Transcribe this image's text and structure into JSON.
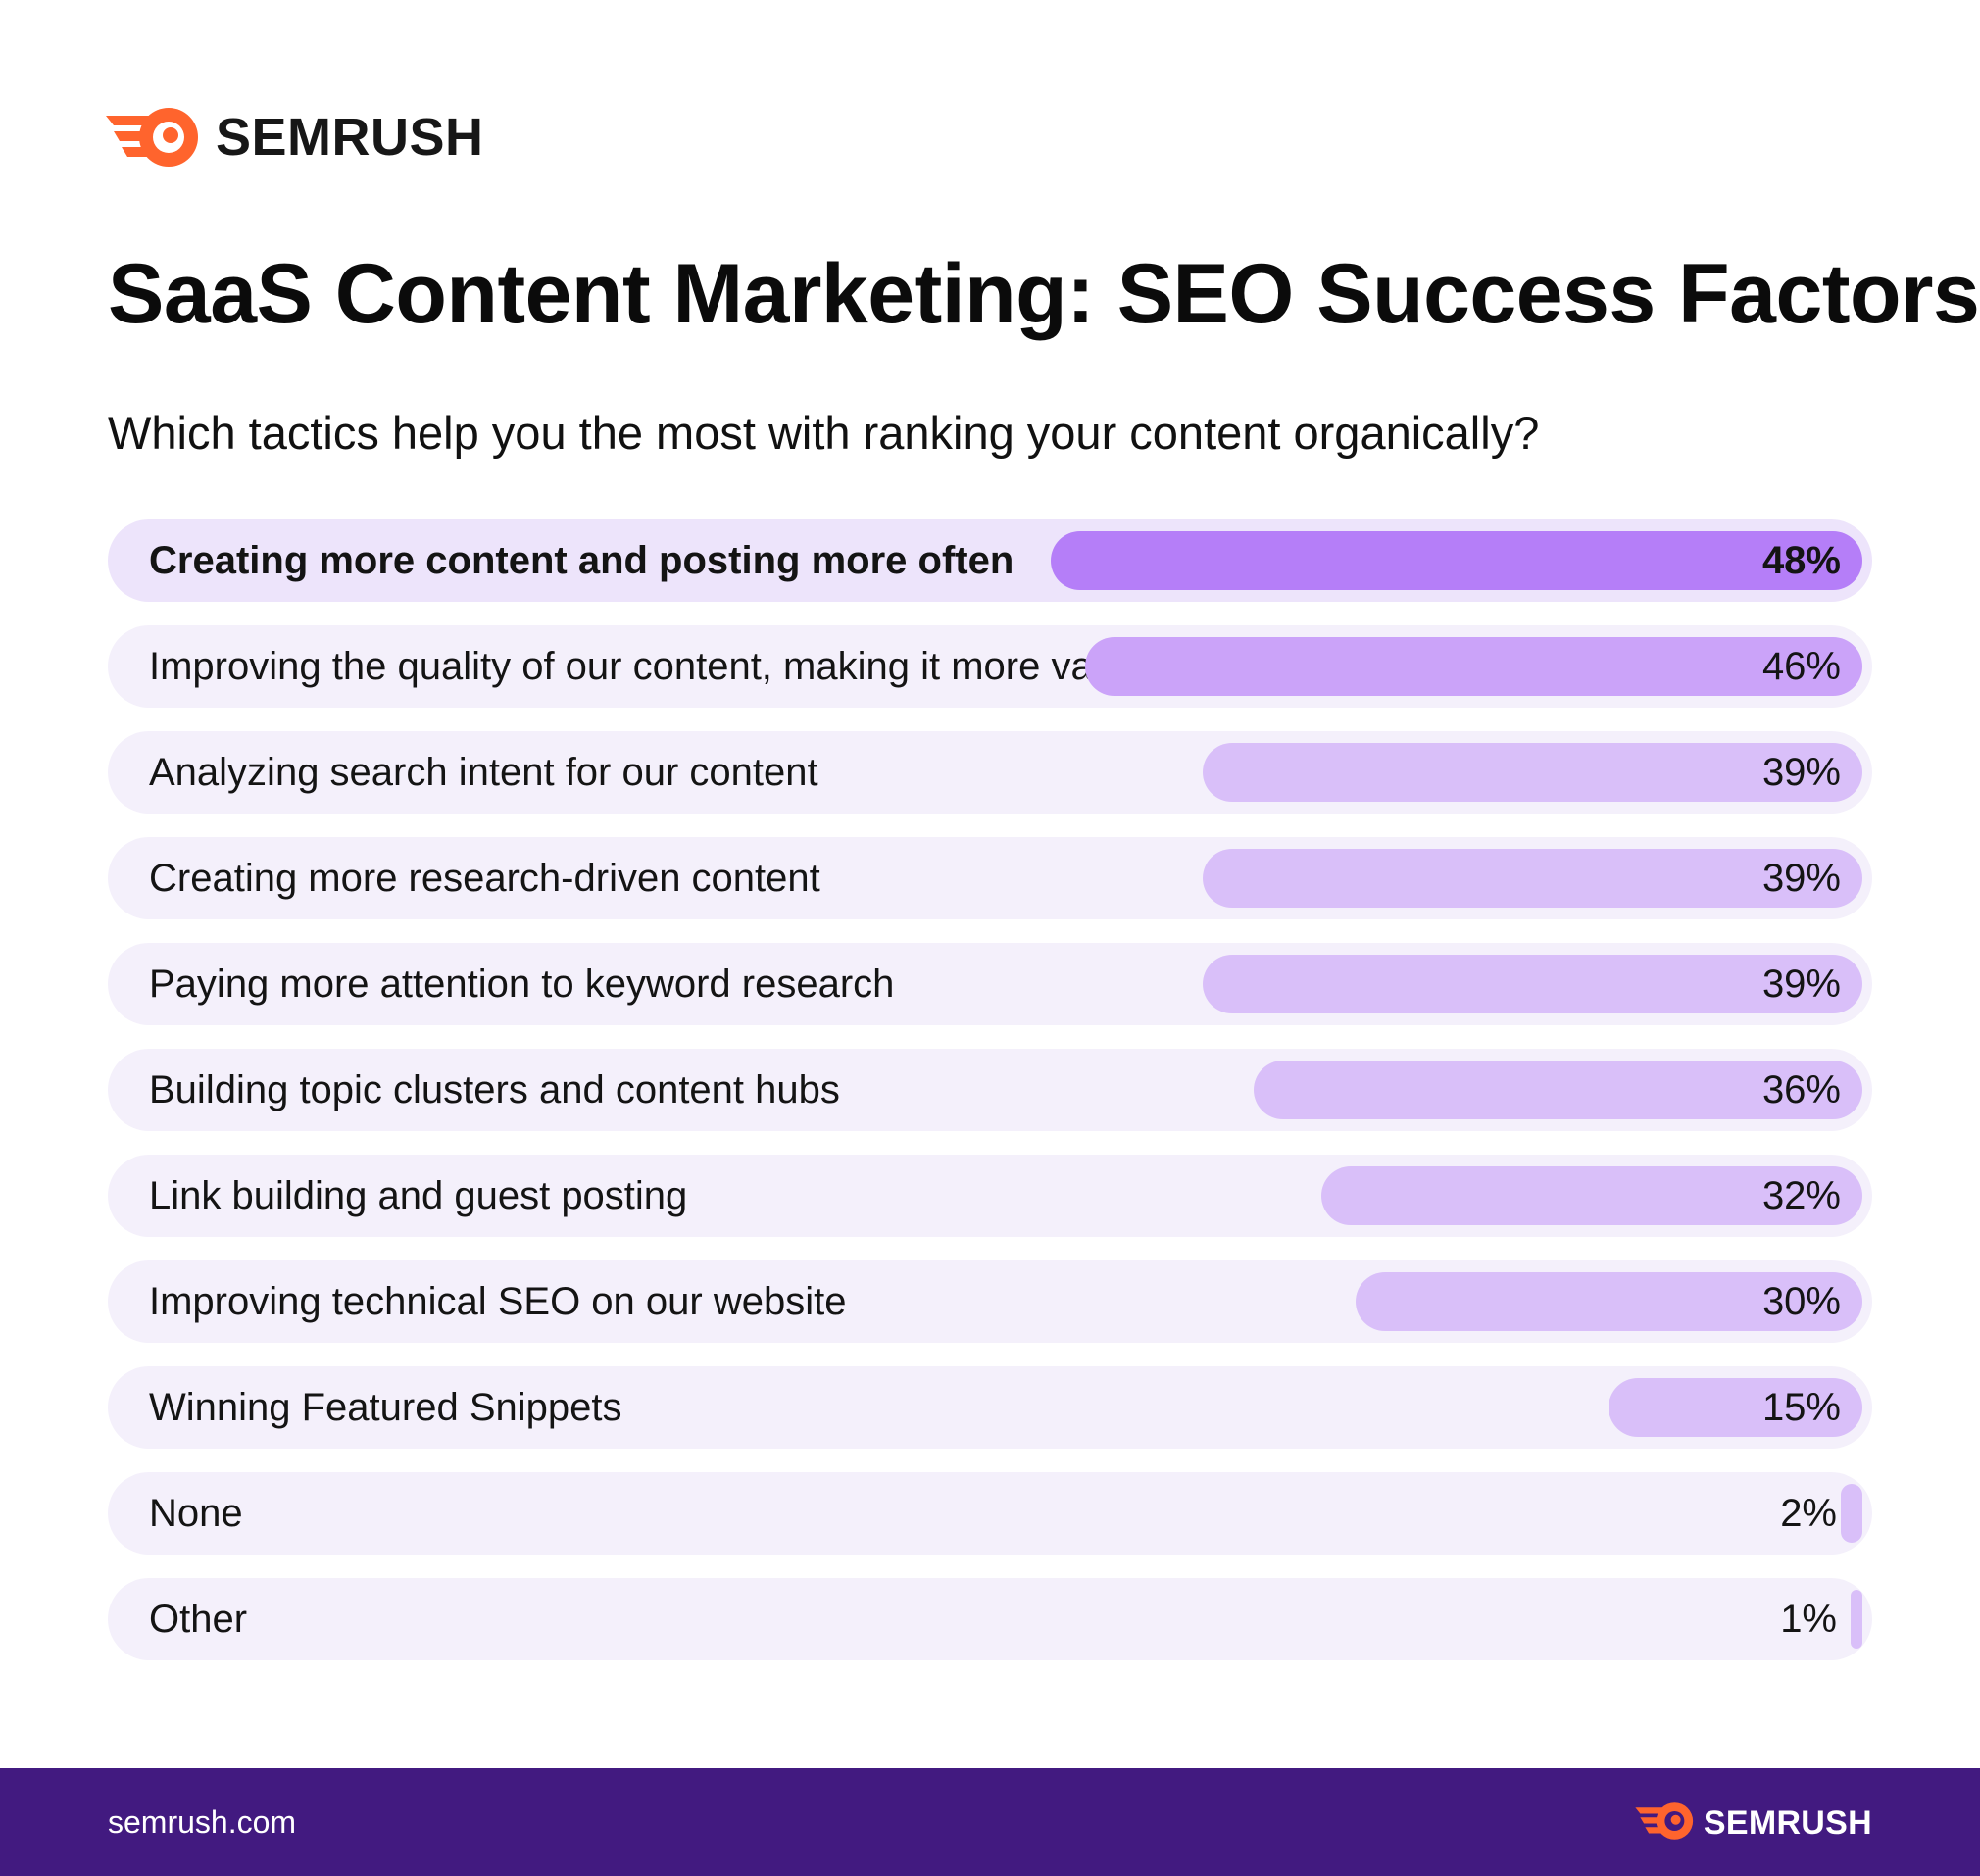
{
  "brand": {
    "name": "SEMRUSH",
    "color": "#ff642d",
    "logo_icon": "semrush-comet-icon"
  },
  "title": "SaaS Content Marketing: SEO Success Factors",
  "subtitle": "Which tactics help you the most with ranking your content organically?",
  "footer": {
    "url": "semrush.com",
    "brand": "SEMRUSH",
    "background": "#421a80"
  },
  "chart_data": {
    "type": "bar",
    "orientation": "horizontal",
    "title": "SaaS Content Marketing: SEO Success Factors",
    "subtitle": "Which tactics help you the most with ranking your content organically?",
    "value_format": "percent",
    "xlim": [
      0,
      50
    ],
    "categories": [
      "Creating more content and posting more often",
      "Improving the quality of our content, making it more valuable",
      "Analyzing search intent for our content",
      "Creating more research-driven content",
      "Paying more attention to keyword research",
      "Building topic clusters and content hubs",
      "Link building and guest posting",
      "Improving technical SEO on our website",
      "Winning Featured Snippets",
      "None",
      "Other"
    ],
    "values": [
      48,
      46,
      39,
      39,
      39,
      36,
      32,
      30,
      15,
      2,
      1
    ],
    "labels": [
      "48%",
      "46%",
      "39%",
      "39%",
      "39%",
      "36%",
      "32%",
      "30%",
      "15%",
      "2%",
      "1%"
    ],
    "colors": {
      "row_bg": "#f4f0fb",
      "row_bg_top": "#ede4fb",
      "bar": "#d9bff9",
      "bar_second": "#cba3f9",
      "bar_top": "#b57ef8"
    }
  }
}
